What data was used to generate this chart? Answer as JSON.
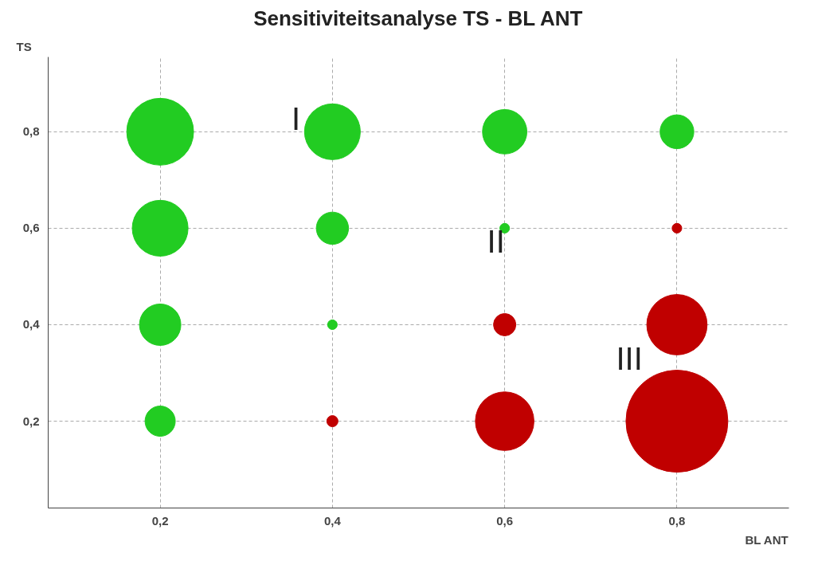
{
  "chart_data": {
    "type": "bubble",
    "title": "Sensitiviteitsanalyse TS - BL ANT",
    "xlabel": "BL ANT",
    "ylabel": "TS",
    "series": [
      {
        "color": "#22cc22",
        "x": [
          0.2,
          0.4,
          0.6,
          0.8,
          0.2,
          0.4,
          0.6,
          0.2,
          0.4,
          0.2
        ],
        "values": [
          0.8,
          0.8,
          0.8,
          0.8,
          0.6,
          0.6,
          0.6,
          0.4,
          0.4,
          0.2
        ],
        "sizes": [
          0.43,
          0.3,
          0.19,
          0.11,
          0.3,
          0.1,
          0.009,
          0.165,
          0.009,
          0.088
        ]
      },
      {
        "color": "#c00000",
        "x": [
          0.8,
          0.4,
          0.6,
          0.8,
          0.6,
          0.8
        ],
        "values": [
          0.6,
          0.2,
          0.4,
          0.4,
          0.2,
          0.2
        ],
        "sizes": [
          0.009,
          0.012,
          0.048,
          0.35,
          0.33,
          1
        ]
      }
    ],
    "xlim": [
      0.07,
      0.93
    ],
    "ylim": [
      0.02,
      0.955
    ],
    "xticks": [
      {
        "value": 0.2,
        "label": "0,2"
      },
      {
        "value": 0.4,
        "label": "0,4"
      },
      {
        "value": 0.6,
        "label": "0,6"
      },
      {
        "value": 0.8,
        "label": "0,8"
      }
    ],
    "yticks": [
      {
        "value": 0.2,
        "label": "0,2"
      },
      {
        "value": 0.4,
        "label": "0,4"
      },
      {
        "value": 0.6,
        "label": "0,6"
      },
      {
        "value": 0.8,
        "label": "0,8"
      }
    ],
    "grid": true,
    "annotations": [
      "I",
      "II",
      "III"
    ]
  }
}
